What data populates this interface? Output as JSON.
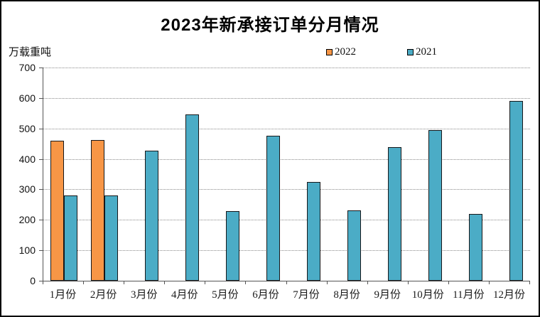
{
  "title": "2023年新承接订单分月情况",
  "unit_label": "万载重吨",
  "legend": [
    {
      "label": "2022",
      "color": "#F79646"
    },
    {
      "label": "2021",
      "color": "#4BACC6"
    }
  ],
  "colors": {
    "bar_border": "#17181a",
    "axis": "#555555",
    "gridline": "#8a8a8a"
  },
  "chart_data": {
    "type": "bar",
    "title": "2023年新承接订单分月情况",
    "ylabel": "万载重吨",
    "xlabel": "",
    "ylim": [
      0,
      700
    ],
    "ytick_step": 100,
    "grid": "horizontal-dotted",
    "legend_position": "top",
    "categories": [
      "1月份",
      "2月份",
      "3月份",
      "4月份",
      "5月份",
      "6月份",
      "7月份",
      "8月份",
      "9月份",
      "10月份",
      "11月份",
      "12月份"
    ],
    "series": [
      {
        "name": "2022",
        "color": "#F79646",
        "values": [
          460,
          462,
          null,
          null,
          null,
          null,
          null,
          null,
          null,
          null,
          null,
          null
        ]
      },
      {
        "name": "2021",
        "color": "#4BACC6",
        "values": [
          280,
          281,
          428,
          546,
          229,
          476,
          324,
          232,
          439,
          494,
          219,
          591
        ]
      }
    ]
  }
}
